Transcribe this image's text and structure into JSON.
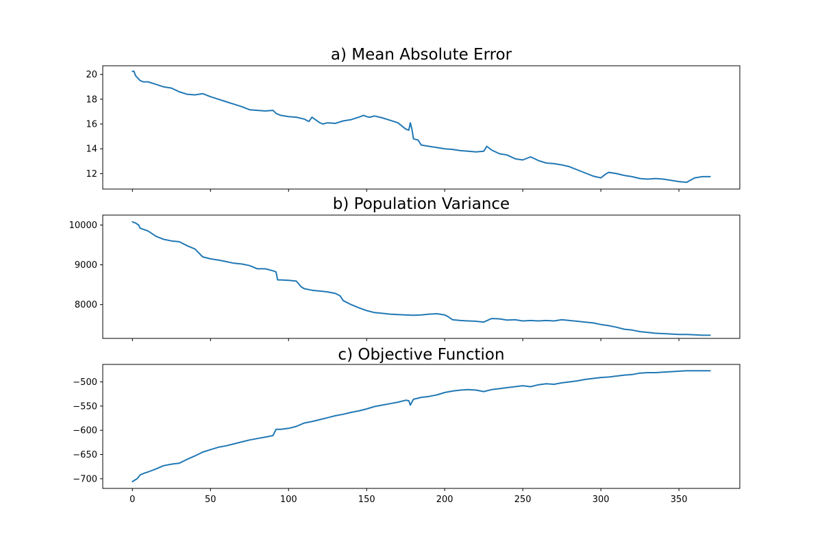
{
  "colors": {
    "series": "#1f77b4"
  },
  "x_axis": {
    "ticks": [
      0,
      50,
      100,
      150,
      200,
      250,
      300,
      350
    ],
    "range": [
      -19,
      389
    ]
  },
  "chart_data": [
    {
      "type": "line",
      "title": "a) Mean Absolute Error",
      "xlabel": "",
      "ylabel": "",
      "ylim": [
        10.75,
        20.7
      ],
      "yticks": [
        12,
        14,
        16,
        18,
        20
      ],
      "series": [
        {
          "x": [
            0,
            1,
            2,
            5,
            7,
            10,
            15,
            20,
            25,
            30,
            35,
            40,
            45,
            50,
            55,
            60,
            65,
            70,
            75,
            80,
            85,
            90,
            92,
            95,
            100,
            105,
            110,
            113,
            115,
            120,
            122,
            125,
            130,
            135,
            140,
            145,
            148,
            150,
            152,
            155,
            160,
            165,
            170,
            175,
            177,
            178,
            179,
            180,
            183,
            185,
            190,
            195,
            200,
            205,
            210,
            215,
            220,
            225,
            227,
            230,
            235,
            240,
            245,
            250,
            255,
            260,
            265,
            270,
            275,
            280,
            285,
            290,
            295,
            300,
            303,
            305,
            310,
            315,
            320,
            325,
            330,
            335,
            340,
            345,
            350,
            355,
            360,
            365,
            370
          ],
          "y": [
            20.25,
            20.25,
            19.9,
            19.5,
            19.4,
            19.4,
            19.2,
            19.0,
            18.9,
            18.6,
            18.4,
            18.35,
            18.45,
            18.2,
            18.0,
            17.8,
            17.6,
            17.4,
            17.15,
            17.1,
            17.05,
            17.1,
            16.85,
            16.7,
            16.6,
            16.55,
            16.4,
            16.2,
            16.55,
            16.1,
            16.0,
            16.1,
            16.05,
            16.25,
            16.35,
            16.55,
            16.7,
            16.6,
            16.55,
            16.65,
            16.5,
            16.3,
            16.1,
            15.6,
            15.5,
            16.1,
            15.6,
            14.8,
            14.7,
            14.3,
            14.2,
            14.1,
            14.0,
            13.95,
            13.85,
            13.8,
            13.75,
            13.8,
            14.2,
            13.9,
            13.6,
            13.5,
            13.2,
            13.1,
            13.35,
            13.05,
            12.85,
            12.8,
            12.7,
            12.55,
            12.3,
            12.05,
            11.8,
            11.65,
            11.95,
            12.1,
            12.0,
            11.85,
            11.75,
            11.6,
            11.55,
            11.6,
            11.55,
            11.45,
            11.35,
            11.3,
            11.65,
            11.75,
            11.75
          ]
        }
      ]
    },
    {
      "type": "line",
      "title": "b) Population Variance",
      "xlabel": "",
      "ylabel": "",
      "ylim": [
        7150,
        10250
      ],
      "yticks": [
        8000,
        9000,
        10000
      ],
      "series": [
        {
          "x": [
            0,
            2,
            4,
            5,
            10,
            15,
            20,
            25,
            30,
            35,
            40,
            45,
            50,
            55,
            60,
            65,
            70,
            75,
            80,
            85,
            90,
            92,
            93,
            95,
            100,
            105,
            108,
            110,
            115,
            120,
            125,
            130,
            133,
            135,
            140,
            145,
            150,
            155,
            160,
            165,
            170,
            175,
            180,
            185,
            190,
            195,
            200,
            202,
            205,
            210,
            215,
            220,
            225,
            230,
            235,
            240,
            245,
            250,
            255,
            260,
            265,
            270,
            275,
            280,
            285,
            290,
            295,
            300,
            305,
            310,
            315,
            320,
            325,
            330,
            335,
            340,
            345,
            350,
            355,
            360,
            365,
            370
          ],
          "y": [
            10080,
            10050,
            10000,
            9920,
            9850,
            9720,
            9640,
            9600,
            9580,
            9480,
            9400,
            9200,
            9150,
            9120,
            9080,
            9040,
            9020,
            8980,
            8900,
            8900,
            8850,
            8820,
            8620,
            8620,
            8610,
            8590,
            8450,
            8400,
            8360,
            8340,
            8320,
            8280,
            8220,
            8100,
            8000,
            7920,
            7850,
            7800,
            7780,
            7760,
            7750,
            7740,
            7730,
            7740,
            7760,
            7770,
            7740,
            7700,
            7620,
            7600,
            7590,
            7580,
            7560,
            7650,
            7640,
            7610,
            7620,
            7590,
            7600,
            7590,
            7600,
            7590,
            7620,
            7600,
            7580,
            7560,
            7540,
            7500,
            7470,
            7430,
            7380,
            7360,
            7320,
            7300,
            7280,
            7270,
            7260,
            7250,
            7250,
            7240,
            7230,
            7230
          ]
        }
      ]
    },
    {
      "type": "line",
      "title": "c) Objective Function",
      "xlabel": "",
      "ylabel": "",
      "ylim": [
        -720,
        -464
      ],
      "yticks": [
        -700,
        -650,
        -600,
        -550,
        -500
      ],
      "series": [
        {
          "x": [
            0,
            3,
            5,
            8,
            10,
            15,
            20,
            25,
            30,
            35,
            40,
            45,
            50,
            55,
            60,
            65,
            70,
            75,
            80,
            85,
            90,
            92,
            95,
            100,
            105,
            110,
            115,
            120,
            125,
            130,
            135,
            140,
            145,
            150,
            155,
            160,
            165,
            170,
            175,
            177,
            178,
            180,
            185,
            190,
            195,
            200,
            205,
            210,
            215,
            220,
            225,
            230,
            235,
            240,
            245,
            250,
            255,
            260,
            265,
            270,
            275,
            280,
            285,
            290,
            295,
            300,
            305,
            310,
            315,
            320,
            325,
            330,
            335,
            340,
            345,
            350,
            355,
            360,
            365,
            370
          ],
          "y": [
            -706,
            -700,
            -692,
            -688,
            -686,
            -680,
            -673,
            -670,
            -668,
            -660,
            -653,
            -645,
            -640,
            -635,
            -632,
            -628,
            -624,
            -620,
            -617,
            -614,
            -611,
            -598,
            -598,
            -596,
            -592,
            -585,
            -582,
            -578,
            -574,
            -570,
            -567,
            -563,
            -560,
            -556,
            -551,
            -548,
            -545,
            -542,
            -538,
            -539,
            -548,
            -536,
            -532,
            -530,
            -527,
            -522,
            -519,
            -517,
            -516,
            -517,
            -520,
            -516,
            -514,
            -512,
            -510,
            -508,
            -510,
            -506,
            -504,
            -505,
            -502,
            -500,
            -498,
            -495,
            -493,
            -491,
            -490,
            -488,
            -486,
            -485,
            -482,
            -481,
            -481,
            -480,
            -479,
            -478,
            -477,
            -477,
            -477,
            -477
          ]
        }
      ]
    }
  ]
}
